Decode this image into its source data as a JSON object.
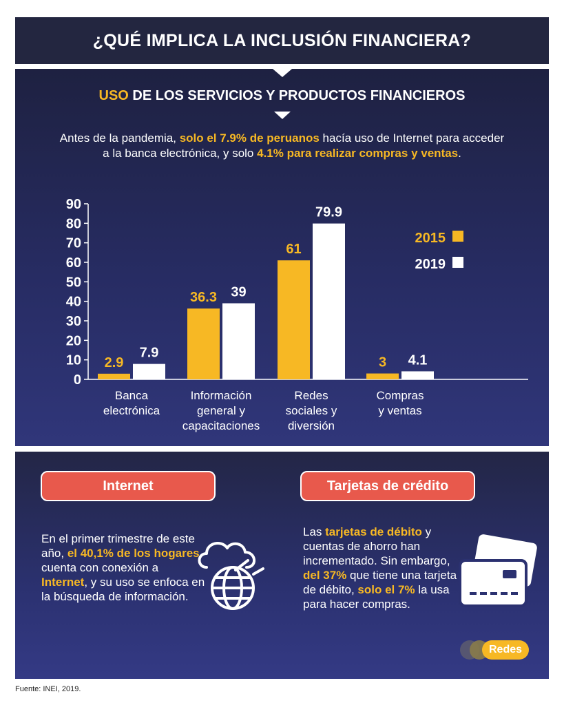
{
  "title": "¿QUÉ IMPLICA LA INCLUSIÓN FINANCIERA?",
  "subtitle": {
    "highlight": "USO",
    "rest": " DE LOS SERVICIOS Y PRODUCTOS FINANCIEROS"
  },
  "intro": {
    "p1": "Antes de la pandemia, ",
    "h1": "solo el 7.9% de peruanos",
    "p2": " hacía uso de Internet para acceder a la banca electrónica, y solo ",
    "h2": "4.1% para realizar compras y ventas",
    "p3": "."
  },
  "colors": {
    "series_2015": "#f7b824",
    "series_2019": "#ffffff",
    "title_bg": "#232640",
    "pill": "#e8594c"
  },
  "chart_data": {
    "type": "bar",
    "categories": [
      [
        "Banca",
        "electrónica"
      ],
      [
        "Información",
        "general y",
        "capacitaciones"
      ],
      [
        "Redes",
        "sociales y",
        "diversión"
      ],
      [
        "Compras",
        "y ventas"
      ]
    ],
    "series": [
      {
        "name": "2015",
        "values": [
          2.9,
          36.3,
          61,
          3
        ],
        "labels": [
          "2.9",
          "36.3",
          "61",
          "3"
        ]
      },
      {
        "name": "2019",
        "values": [
          7.9,
          39,
          79.9,
          4.1
        ],
        "labels": [
          "7.9",
          "39",
          "79.9",
          "4.1"
        ]
      }
    ],
    "ylim": [
      0,
      90
    ],
    "yticks": [
      "0",
      "10",
      "20",
      "30",
      "40",
      "50",
      "60",
      "70",
      "80",
      "90"
    ],
    "legend_position": "right"
  },
  "internet": {
    "label": "Internet",
    "t1": "En el primer trimestre de este año, ",
    "h1": "el 40,1% de los hogares",
    "t2": " cuenta con conexión a ",
    "h2": "Internet",
    "t3": ", y su uso se enfoca en la búsqueda de información.",
    "icon": "globe-cloud-icon"
  },
  "tarjetas": {
    "label": "Tarjetas de crédito",
    "t1": "Las ",
    "h1": "tarjetas de débito",
    "t2": " y cuentas de ahorro han incrementado. Sin embargo, ",
    "h2": "del 37%",
    "t3": " que tiene una tarjeta de débito, ",
    "h3": "solo el 7%",
    "t4": " la usa para hacer compras.",
    "icon": "credit-cards-icon"
  },
  "logo": "Redes",
  "source": "Fuente: INEI, 2019."
}
